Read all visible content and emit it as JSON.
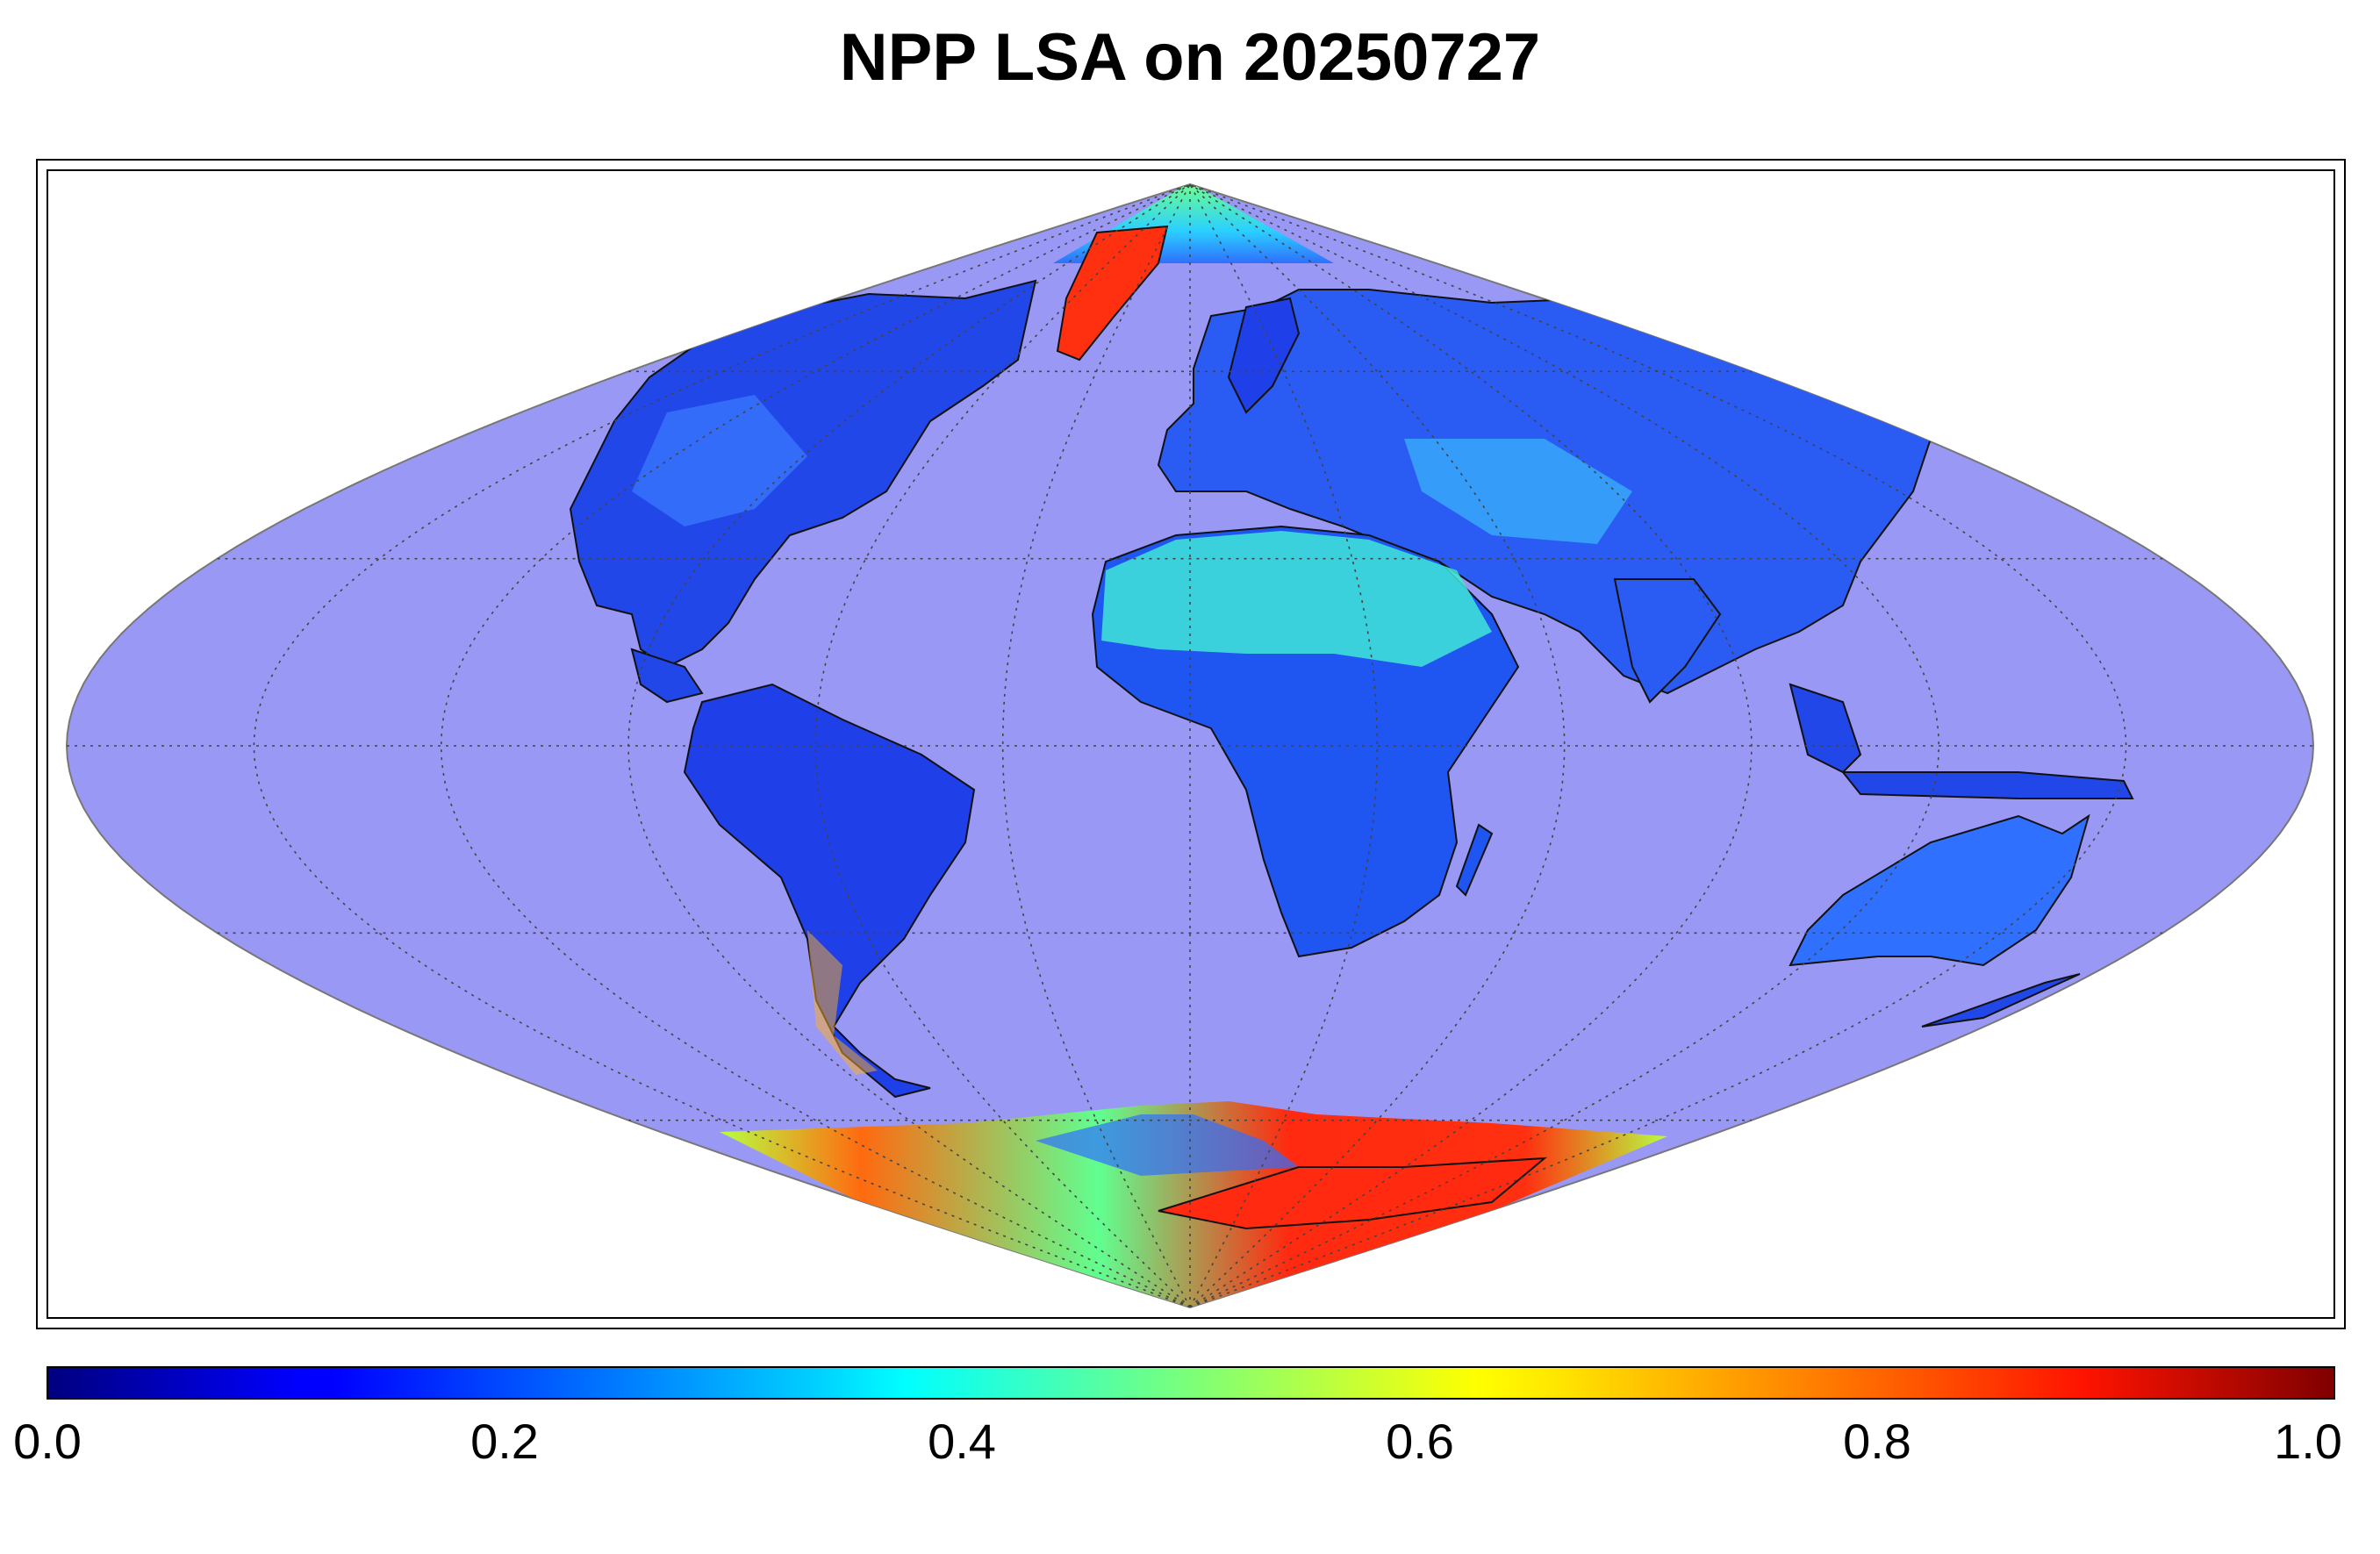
{
  "title": "NPP LSA on 20250727",
  "projection": "sinusoidal",
  "graticule": {
    "lat_step": 30,
    "lon_step": 30,
    "style": "dotted"
  },
  "colors": {
    "ocean": "#9a98f5",
    "snow_ice": "#ff3010",
    "land_low": "#1f3fe8",
    "land_mid": "#2f88ff",
    "desert": "#40e8e0",
    "coast": "#111111"
  },
  "colorbar": {
    "colormap": "jet",
    "min": 0.0,
    "max": 1.0,
    "tick_labels": [
      "0.0",
      "0.2",
      "0.4",
      "0.6",
      "0.8",
      "1.0"
    ]
  }
}
